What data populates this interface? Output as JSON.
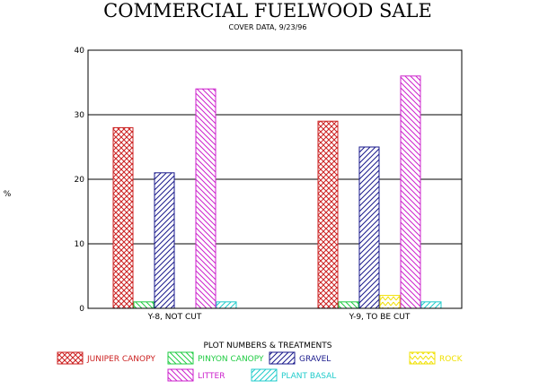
{
  "chart_data": {
    "type": "bar",
    "title": "COMMERCIAL FUELWOOD SALE",
    "subtitle": "COVER DATA, 9/23/96",
    "ylabel": "%",
    "xlabel": "",
    "ylim": [
      0,
      40
    ],
    "yticks": [
      "0",
      "10",
      "20",
      "30",
      "40"
    ],
    "grid": true,
    "legend_title": "PLOT NUMBERS & TREATMENTS",
    "legend_position": "bottom",
    "categories": [
      "Y-8, NOT CUT",
      "Y-9, TO BE CUT"
    ],
    "series": [
      {
        "name": "JUNIPER CANOPY",
        "values": [
          28,
          29
        ],
        "color": "#cc2222",
        "pattern": "crosshatch"
      },
      {
        "name": "PINYON CANOPY",
        "values": [
          1,
          1
        ],
        "color": "#22cc44",
        "pattern": "backslash"
      },
      {
        "name": "GRAVEL",
        "values": [
          21,
          25
        ],
        "color": "#1a1a8c",
        "pattern": "slash"
      },
      {
        "name": "ROCK",
        "values": [
          0,
          2
        ],
        "color": "#f0e000",
        "pattern": "chevron"
      },
      {
        "name": "LITTER",
        "values": [
          34,
          36
        ],
        "color": "#cc22cc",
        "pattern": "backslash"
      },
      {
        "name": "PLANT BASAL",
        "values": [
          1,
          1
        ],
        "color": "#22cccc",
        "pattern": "slash"
      }
    ]
  }
}
